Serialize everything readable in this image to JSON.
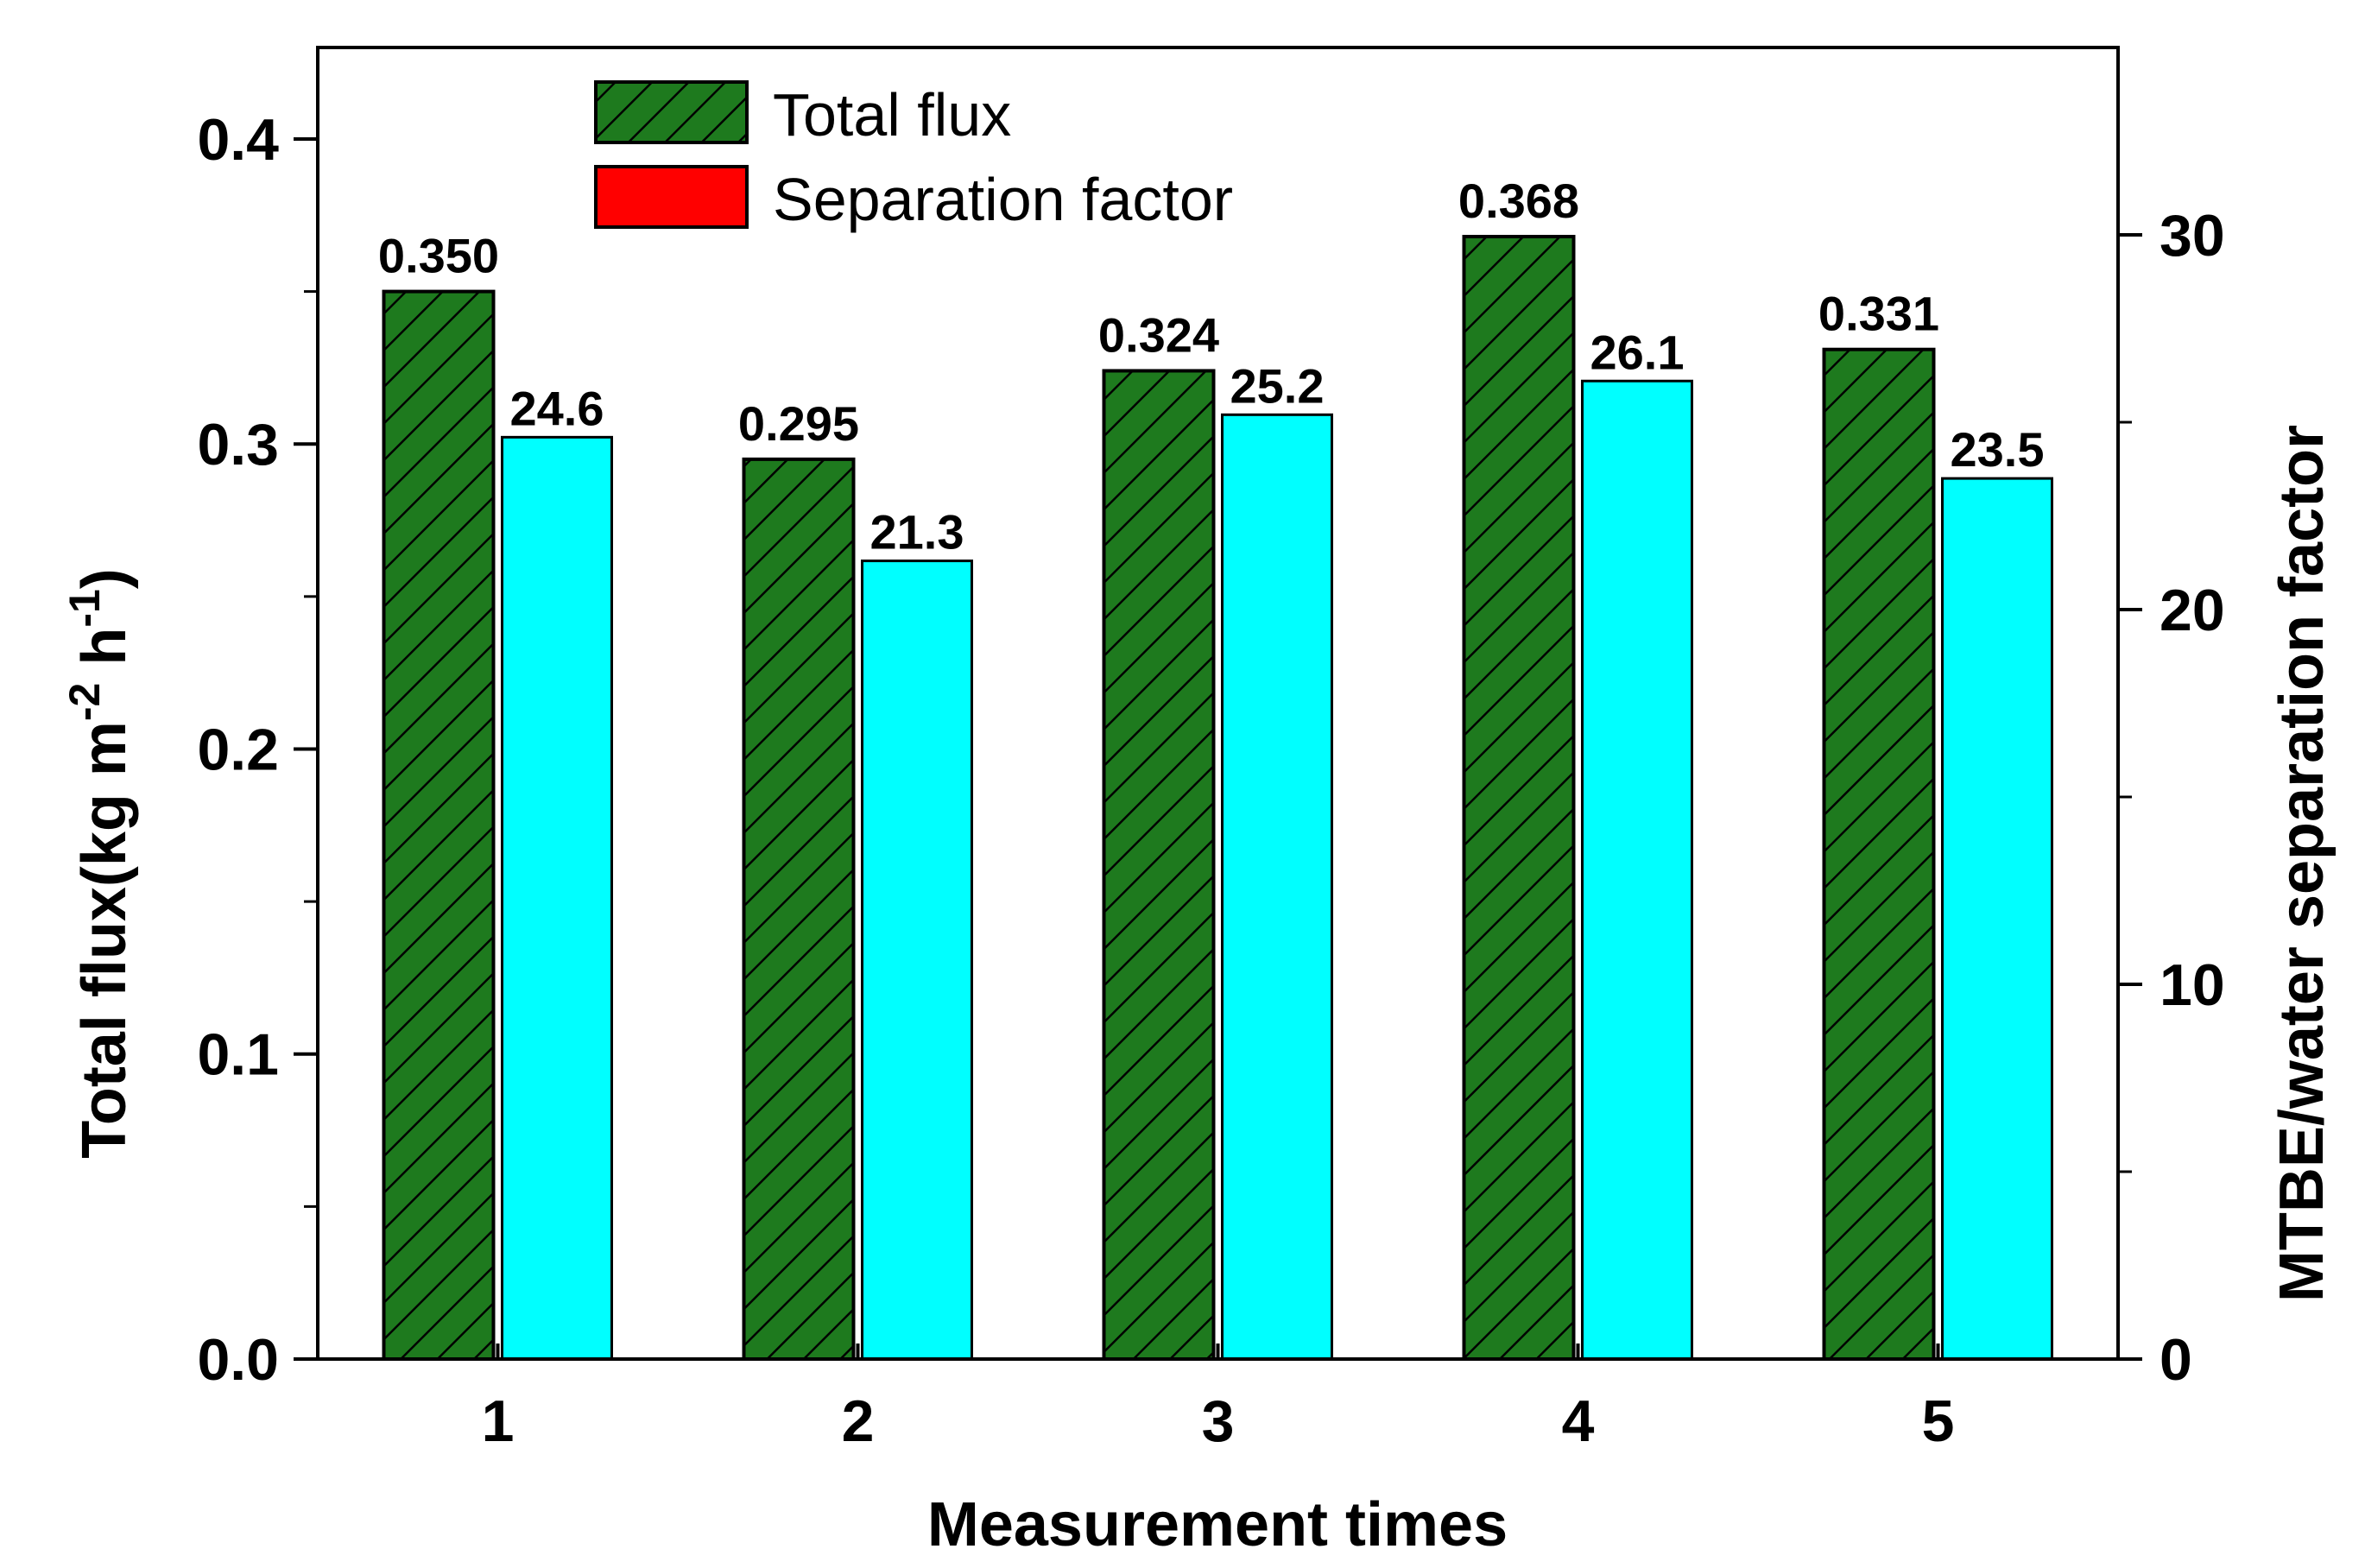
{
  "chart_data": {
    "type": "bar",
    "title": "",
    "categories": [
      "1",
      "2",
      "3",
      "4",
      "5"
    ],
    "xlabel": "Measurement times",
    "ylabel": {
      "text": "Total flux(kg m",
      "sup1": "-2",
      "mid": " h",
      "sup2": "-1",
      "tail": ")"
    },
    "ylabel_right": "MTBE/water separation factor",
    "ylim": [
      0,
      0.43
    ],
    "ylim_right": [
      0,
      35
    ],
    "yticks": [
      0.0,
      0.1,
      0.2,
      0.3,
      0.4
    ],
    "ytick_labels": [
      "0.0",
      "0.1",
      "0.2",
      "0.3",
      "0.4"
    ],
    "yticks_right": [
      0,
      10,
      20,
      30
    ],
    "ytick_right_labels": [
      "0",
      "10",
      "20",
      "30"
    ],
    "legend_position": "top-left",
    "series": [
      {
        "name": "Total flux",
        "axis": "left",
        "values": [
          0.35,
          0.295,
          0.324,
          0.368,
          0.331
        ],
        "labels": [
          "0.350",
          "0.295",
          "0.324",
          "0.368",
          "0.331"
        ],
        "color": "#1e7a1e",
        "pattern": "hatched"
      },
      {
        "name": "Separation factor",
        "axis": "right",
        "values": [
          24.6,
          21.3,
          25.2,
          26.1,
          23.5
        ],
        "labels": [
          "24.6",
          "21.3",
          "25.2",
          "26.1",
          "23.5"
        ],
        "color": "#00ffff",
        "legend_color": "#ff0000"
      }
    ]
  }
}
